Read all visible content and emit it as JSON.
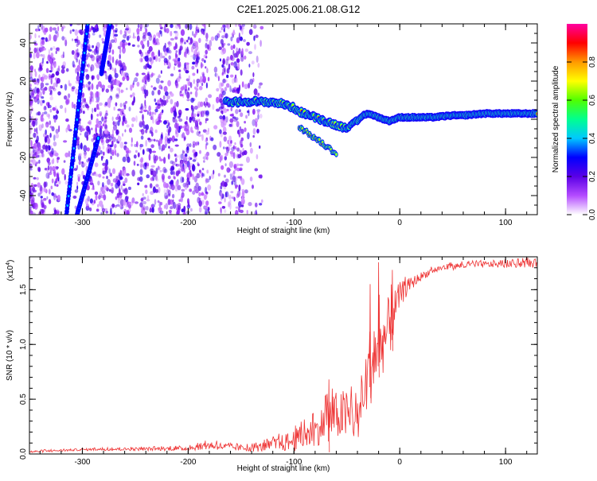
{
  "title": "C2E1.2025.006.21.08.G12",
  "chart_data": [
    {
      "type": "heatmap",
      "xlabel": "Height of straight line (km)",
      "ylabel": "Frequency (Hz)",
      "xlim": [
        -350,
        130
      ],
      "ylim": [
        -50,
        50
      ],
      "xticks": [
        -300,
        -200,
        -100,
        0,
        100
      ],
      "yticks": [
        -40,
        -20,
        0,
        20,
        40
      ],
      "colorbar": {
        "label": "Normalized spectral amplitude",
        "range": [
          0,
          1
        ],
        "ticks": [
          "0.0",
          "0.2",
          "0.4",
          "0.6",
          "0.8"
        ],
        "colors": [
          "#ffffff",
          "#b44cff",
          "#5a00e6",
          "#0000ff",
          "#00c8ff",
          "#00ff90",
          "#50ff00",
          "#ffff00",
          "#ff9900",
          "#ff0000",
          "#ff00a0"
        ]
      },
      "ridge": {
        "x": [
          -165,
          -150,
          -140,
          -130,
          -120,
          -110,
          -100,
          -95,
          -90,
          -85,
          -80,
          -75,
          -70,
          -65,
          -60,
          -55,
          -50,
          -45,
          -40,
          -35,
          -30,
          -25,
          -20,
          -15,
          -10,
          -5,
          0,
          10,
          20,
          30,
          40,
          50,
          60,
          70,
          80,
          90,
          100,
          110,
          120,
          130
        ],
        "y": [
          9,
          9,
          9.5,
          9,
          9,
          8,
          6,
          4,
          3,
          2,
          1,
          0,
          -1,
          -2,
          -3,
          -4,
          -4,
          -3,
          -1,
          2,
          3,
          2,
          1,
          0,
          -1,
          0,
          1,
          1,
          1,
          1,
          1.5,
          2,
          2,
          2.5,
          3,
          3,
          3,
          3,
          3,
          3
        ]
      },
      "ridge_branch": {
        "x": [
          -95,
          -90,
          -85,
          -80,
          -75,
          -70,
          -65,
          -60
        ],
        "y": [
          -4,
          -6,
          -8,
          -10,
          -12,
          -14,
          -16,
          -18
        ]
      },
      "tracks": [
        {
          "x": [
            -315,
            -295
          ],
          "y": [
            -50,
            50
          ]
        },
        {
          "x": [
            -305,
            -285
          ],
          "y": [
            -50,
            -10
          ]
        },
        {
          "x": [
            -282,
            -274
          ],
          "y": [
            24,
            50
          ]
        }
      ]
    },
    {
      "type": "line",
      "xlabel": "Height of straight line (km)",
      "ylabel": "SNR (10 * v/v)",
      "multiplier": "(x10",
      "multiplier_exp": "4",
      "multiplier_close": ")",
      "xlim": [
        -350,
        130
      ],
      "ylim": [
        0,
        1.8
      ],
      "xticks": [
        -300,
        -200,
        -100,
        0,
        100
      ],
      "yticks": [
        "0.0",
        "0.5",
        "1.0",
        "1.5"
      ],
      "color": "#ee3333",
      "envelope": {
        "x": [
          -350,
          -300,
          -200,
          -180,
          -160,
          -140,
          -120,
          -100,
          -80,
          -70,
          -60,
          -50,
          -40,
          -35,
          -30,
          -25,
          -20,
          -15,
          -10,
          -5,
          0,
          10,
          20,
          30,
          40,
          60,
          80,
          100,
          120,
          130
        ],
        "mean": [
          0.02,
          0.04,
          0.05,
          0.08,
          0.06,
          0.05,
          0.08,
          0.12,
          0.2,
          0.3,
          0.35,
          0.35,
          0.3,
          0.45,
          0.75,
          0.9,
          1.0,
          1.05,
          1.15,
          1.3,
          1.45,
          1.55,
          1.62,
          1.67,
          1.7,
          1.72,
          1.73,
          1.73,
          1.74,
          1.74
        ],
        "spread": [
          0.01,
          0.01,
          0.02,
          0.04,
          0.03,
          0.03,
          0.06,
          0.1,
          0.14,
          0.18,
          0.22,
          0.25,
          0.18,
          0.25,
          0.35,
          0.4,
          0.35,
          0.3,
          0.3,
          0.2,
          0.12,
          0.06,
          0.04,
          0.03,
          0.03,
          0.03,
          0.03,
          0.03,
          0.04,
          0.04
        ]
      },
      "spikes": [
        {
          "x": -20,
          "y": 1.75
        },
        {
          "x": -28,
          "y": 1.55
        },
        {
          "x": -7,
          "y": 1.68
        },
        {
          "x": -67,
          "y": 0.68
        }
      ]
    }
  ]
}
